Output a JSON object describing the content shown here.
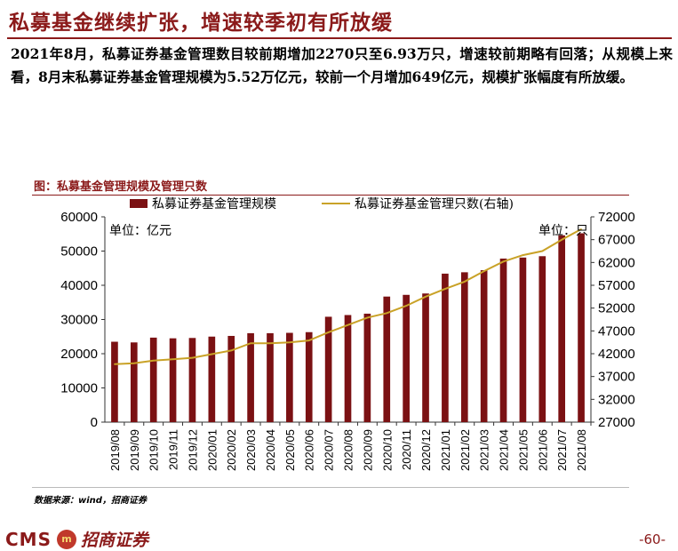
{
  "slide": {
    "title": "私募基金继续扩张，增速较季初有所放缓",
    "paragraph": "2021年8月，私募证券基金管理数目较前期增加2270只至6.93万只，增速较前期略有回落；从规模上来看，8月末私募证券基金管理规模为5.52万亿元，较前一个月增加649亿元，规模扩张幅度有所放缓。",
    "figure_title": "图：私募基金管理规模及管理只数",
    "source": "数据来源：wind，招商证券",
    "page_number": "-60-"
  },
  "footer": {
    "cms": "CMS",
    "logo_mark": "m",
    "brand": "招商证券"
  },
  "chart_data": {
    "type": "bar",
    "title": "私募基金管理规模及管理只数",
    "categories": [
      "2019/08",
      "2019/09",
      "2019/10",
      "2019/11",
      "2019/12",
      "2020/01",
      "2020/02",
      "2020/03",
      "2020/04",
      "2020/05",
      "2020/06",
      "2020/07",
      "2020/08",
      "2020/09",
      "2020/10",
      "2020/11",
      "2020/12",
      "2021/01",
      "2021/02",
      "2021/03",
      "2021/04",
      "2021/05",
      "2021/06",
      "2021/07",
      "2021/08"
    ],
    "series": [
      {
        "name": "私募证券基金管理规模",
        "type": "bar",
        "axis": "left",
        "color": "#7b1113",
        "values": [
          23500,
          23300,
          24700,
          24500,
          24600,
          25000,
          25200,
          26000,
          26000,
          26100,
          26300,
          30800,
          31300,
          31700,
          36700,
          37200,
          37600,
          43400,
          43800,
          44400,
          47800,
          48100,
          48500,
          54600,
          55200
        ]
      },
      {
        "name": "私募证券基金管理只数(右轴)",
        "type": "line",
        "axis": "right",
        "color": "#c9a227",
        "values": [
          39700,
          39900,
          40500,
          40800,
          41100,
          41900,
          42700,
          44300,
          44300,
          44500,
          44900,
          46700,
          48300,
          49900,
          50900,
          52500,
          54500,
          56200,
          57800,
          60100,
          62200,
          63600,
          64500,
          67000,
          69300
        ]
      }
    ],
    "left_axis": {
      "label": "单位：亿元",
      "min": 0,
      "max": 60000,
      "ticks": [
        "0",
        "10000",
        "20000",
        "30000",
        "40000",
        "50000",
        "60000"
      ]
    },
    "right_axis": {
      "label": "单位：只",
      "min": 27000,
      "max": 72000,
      "ticks": [
        "27000",
        "32000",
        "37000",
        "42000",
        "47000",
        "52000",
        "57000",
        "62000",
        "67000",
        "72000"
      ]
    },
    "legend": [
      "私募证券基金管理规模",
      "私募证券基金管理只数(右轴)"
    ],
    "legend_position": "top"
  }
}
